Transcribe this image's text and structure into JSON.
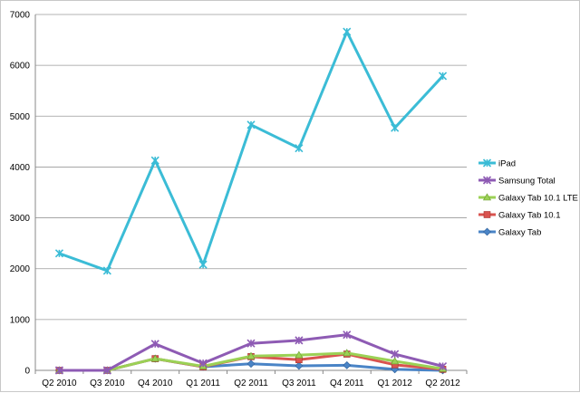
{
  "chart_data": {
    "type": "line",
    "title": "",
    "xlabel": "",
    "ylabel": "",
    "categories": [
      "Q2 2010",
      "Q3 2010",
      "Q4 2010",
      "Q1 2011",
      "Q2 2011",
      "Q3 2011",
      "Q4 2011",
      "Q1 2012",
      "Q2 2012"
    ],
    "ylim": [
      0,
      7000
    ],
    "yticks": [
      0,
      1000,
      2000,
      3000,
      4000,
      5000,
      6000,
      7000
    ],
    "grid": true,
    "legend_position": "right",
    "series": [
      {
        "name": "iPad",
        "color": "#3bbcd6",
        "marker": "x-icon",
        "values": [
          2300,
          1960,
          4130,
          2080,
          4830,
          4370,
          6660,
          4770,
          5790
        ]
      },
      {
        "name": "Samsung Total",
        "color": "#8e5bb4",
        "marker": "x-icon",
        "values": [
          0,
          0,
          520,
          140,
          530,
          590,
          700,
          320,
          80
        ]
      },
      {
        "name": "Galaxy Tab 10.1 LTE",
        "color": "#9bd155",
        "marker": "triangle-icon",
        "values": [
          0,
          0,
          230,
          80,
          280,
          300,
          340,
          180,
          30
        ]
      },
      {
        "name": "Galaxy Tab 10.1",
        "color": "#d9534f",
        "marker": "square-icon",
        "values": [
          0,
          0,
          230,
          70,
          270,
          210,
          320,
          110,
          20
        ]
      },
      {
        "name": "Galaxy Tab",
        "color": "#4a84c6",
        "marker": "diamond-icon",
        "values": [
          0,
          0,
          230,
          70,
          130,
          90,
          100,
          20,
          0
        ]
      }
    ]
  }
}
